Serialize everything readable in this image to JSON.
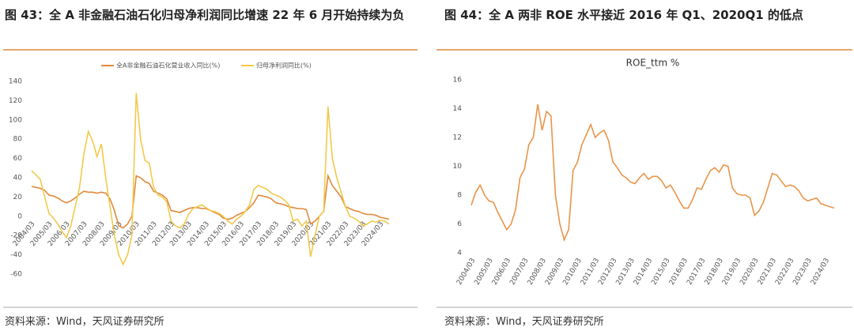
{
  "chart_data": [
    {
      "type": "line",
      "caption": "图 43：全 A 非金融石油石化归母净利润同比增速 22 年 6 月开始持续为负",
      "source": "资料来源：Wind，天风证券研究所",
      "legend": "top",
      "categories": [
        "2004/03",
        null,
        null,
        null,
        "2005/03",
        null,
        null,
        null,
        "2006/03",
        null,
        null,
        null,
        "2007/03",
        null,
        null,
        null,
        "2008/03",
        null,
        null,
        null,
        "2009/03",
        null,
        null,
        null,
        "2010/03",
        null,
        null,
        null,
        "2011/03",
        null,
        null,
        null,
        "2012/03",
        null,
        null,
        null,
        "2013/03",
        null,
        null,
        null,
        "2014/03",
        null,
        null,
        null,
        "2015/03",
        null,
        null,
        null,
        "2016/03",
        null,
        null,
        null,
        "2017/03",
        null,
        null,
        null,
        "2018/03",
        null,
        null,
        null,
        "2019/03",
        null,
        null,
        null,
        "2020/03",
        null,
        null,
        null,
        "2021/03",
        null,
        null,
        null,
        "2022/03",
        null,
        null,
        null,
        "2023/03",
        null,
        null,
        null,
        "2024/03",
        null,
        null
      ],
      "series": [
        {
          "name": "全A非金融石油石化营业收入同比(%)",
          "color": "#e08a3c",
          "values": [
            31,
            30,
            29,
            27,
            22,
            21,
            19,
            16,
            14,
            16,
            19,
            23,
            26,
            25,
            25,
            24,
            25,
            24,
            18,
            6,
            -10,
            -12,
            -8,
            0,
            42,
            40,
            36,
            34,
            26,
            24,
            22,
            18,
            6,
            5,
            4,
            6,
            8,
            9,
            9,
            8,
            8,
            6,
            4,
            2,
            -2,
            -3,
            -2,
            1,
            3,
            5,
            9,
            14,
            22,
            21,
            20,
            18,
            14,
            13,
            12,
            10,
            9,
            8,
            8,
            7,
            -8,
            -5,
            0,
            5,
            42,
            32,
            26,
            20,
            10,
            8,
            6,
            5,
            3,
            2,
            2,
            1,
            -1,
            -2,
            -3
          ]
        },
        {
          "name": "归母净利润同比(%)",
          "color": "#f2c94c",
          "values": [
            47,
            43,
            38,
            20,
            3,
            -2,
            -8,
            -16,
            -22,
            -10,
            10,
            30,
            65,
            88,
            78,
            62,
            75,
            40,
            10,
            -20,
            -40,
            -50,
            -40,
            -20,
            128,
            80,
            58,
            55,
            30,
            22,
            20,
            15,
            -5,
            -10,
            -12,
            -8,
            2,
            8,
            10,
            12,
            9,
            6,
            5,
            3,
            0,
            -5,
            -8,
            -3,
            0,
            5,
            12,
            28,
            32,
            30,
            28,
            24,
            22,
            20,
            17,
            12,
            -5,
            -3,
            -10,
            -5,
            -42,
            -20,
            0,
            5,
            114,
            60,
            40,
            25,
            10,
            0,
            -2,
            -5,
            -10,
            -8,
            -5,
            -6,
            -4,
            -5,
            -8
          ]
        }
      ],
      "ylim": [
        -60,
        140
      ],
      "yticks": [
        -60,
        -40,
        -20,
        0,
        20,
        40,
        60,
        80,
        100,
        120,
        140
      ]
    },
    {
      "type": "line",
      "caption": "图 44：全 A 两非 ROE 水平接近 2016 年 Q1、2020Q1 的低点",
      "source": "资料来源：Wind，天风证券研究所",
      "title": "ROE_ttm %",
      "categories": [
        "2004/03",
        null,
        null,
        null,
        "2005/03",
        null,
        null,
        null,
        "2006/03",
        null,
        null,
        null,
        "2007/03",
        null,
        null,
        null,
        "2008/03",
        null,
        null,
        null,
        "2009/03",
        null,
        null,
        null,
        "2010/03",
        null,
        null,
        null,
        "2011/03",
        null,
        null,
        null,
        "2012/03",
        null,
        null,
        null,
        "2013/03",
        null,
        null,
        null,
        "2014/03",
        null,
        null,
        null,
        "2015/03",
        null,
        null,
        null,
        "2016/03",
        null,
        null,
        null,
        "2017/03",
        null,
        null,
        null,
        "2018/03",
        null,
        null,
        null,
        "2019/03",
        null,
        null,
        null,
        "2020/03",
        null,
        null,
        null,
        "2021/03",
        null,
        null,
        null,
        "2022/03",
        null,
        null,
        null,
        "2023/03",
        null,
        null,
        null,
        "2024/03",
        null,
        null
      ],
      "color": "#e8954a",
      "values": [
        7.3,
        8.2,
        8.7,
        8.0,
        7.6,
        7.5,
        6.8,
        6.2,
        5.6,
        6.0,
        7.0,
        9.2,
        9.8,
        11.5,
        12.0,
        14.3,
        12.5,
        13.8,
        13.5,
        8.0,
        6.0,
        4.9,
        5.6,
        9.7,
        10.3,
        11.5,
        12.2,
        12.9,
        12.0,
        12.3,
        12.5,
        11.8,
        10.3,
        9.9,
        9.4,
        9.2,
        8.9,
        8.8,
        9.2,
        9.5,
        9.1,
        9.3,
        9.3,
        9.0,
        8.5,
        8.7,
        8.2,
        7.6,
        7.1,
        7.1,
        7.7,
        8.5,
        8.4,
        9.1,
        9.7,
        9.9,
        9.6,
        10.1,
        10.0,
        8.5,
        8.1,
        8.0,
        8.0,
        7.8,
        6.6,
        6.9,
        7.5,
        8.5,
        9.5,
        9.4,
        9.0,
        8.6,
        8.7,
        8.6,
        8.3,
        7.8,
        7.6,
        7.7,
        7.8,
        7.4,
        7.3,
        7.2,
        7.1
      ],
      "ylim": [
        4,
        16
      ],
      "yticks": [
        4,
        6,
        8,
        10,
        12,
        14,
        16
      ]
    }
  ]
}
